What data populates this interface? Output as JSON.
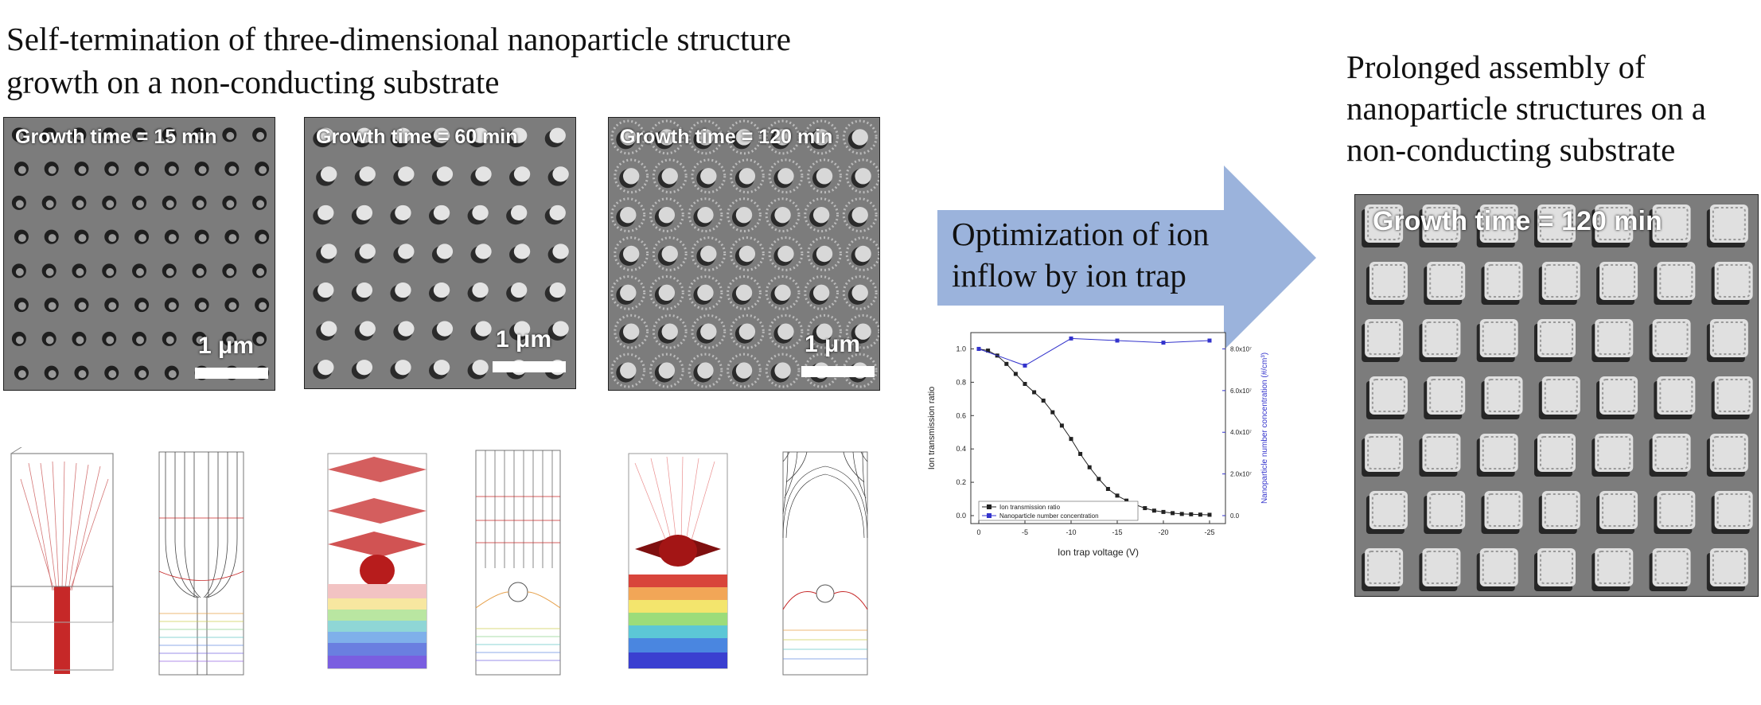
{
  "titles": {
    "left_line1": "Self-termination of three-dimensional nanoparticle structure",
    "left_line2": "growth on a non-conducting substrate",
    "right_line1": "Prolonged assembly of",
    "right_line2": "nanoparticle structures on a",
    "right_line3": "non-conducting substrate"
  },
  "sem_images": [
    {
      "label": "Growth time = 15 min",
      "scale": "1 μm"
    },
    {
      "label": "Growth time = 60 min",
      "scale": "1 μm"
    },
    {
      "label": "Growth time = 120 min",
      "scale": "1 μm"
    },
    {
      "label": "Growth time = 120 min"
    }
  ],
  "arrow": {
    "line1": "Optimization of ion",
    "line2": "inflow by ion trap",
    "color": "#9bb3dc"
  },
  "chart_data": {
    "type": "line",
    "xlabel": "Ion trap voltage (V)",
    "ylabel": "Ion transmission ratio",
    "y2label": "Nanoparticle number concentration (#/cm³)",
    "x_ticks": [
      "0",
      "-5",
      "-10",
      "-15",
      "-20",
      "-25"
    ],
    "y_ticks": [
      "0.0",
      "0.2",
      "0.4",
      "0.6",
      "0.8",
      "1.0"
    ],
    "y2_ticks": [
      "0.0",
      "2.0x10⁷",
      "4.0x10⁷",
      "6.0x10⁷",
      "8.0x10⁷"
    ],
    "xlim": [
      0,
      -25
    ],
    "ylim": [
      0,
      1.05
    ],
    "y2lim": [
      0,
      84000000
    ],
    "legend": "bottom-left",
    "series": [
      {
        "name": "Ion transmission ratio",
        "axis": "left",
        "color": "#222222",
        "x": [
          0,
          -1,
          -2,
          -3,
          -4,
          -5,
          -6,
          -7,
          -8,
          -9,
          -10,
          -11,
          -12,
          -13,
          -14,
          -15,
          -16,
          -17,
          -18,
          -19,
          -20,
          -21,
          -22,
          -23,
          -24,
          -25
        ],
        "y": [
          1.0,
          0.99,
          0.96,
          0.91,
          0.85,
          0.79,
          0.74,
          0.69,
          0.62,
          0.54,
          0.46,
          0.37,
          0.29,
          0.22,
          0.16,
          0.12,
          0.09,
          0.065,
          0.045,
          0.03,
          0.022,
          0.015,
          0.01,
          0.008,
          0.006,
          0.005
        ]
      },
      {
        "name": "Nanoparticle number concentration",
        "axis": "right",
        "color": "#3333cc",
        "x": [
          0,
          -5,
          -10,
          -15,
          -20,
          -25
        ],
        "y": [
          80000000,
          72000000,
          85000000,
          84000000,
          83000000,
          84000000
        ]
      }
    ]
  }
}
